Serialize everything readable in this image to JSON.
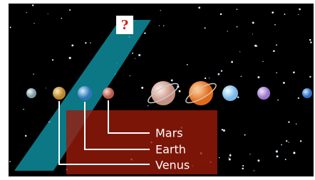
{
  "question": "?",
  "labels": {
    "mars": "Mars",
    "earth": "Earth",
    "venus": "Venus"
  }
}
